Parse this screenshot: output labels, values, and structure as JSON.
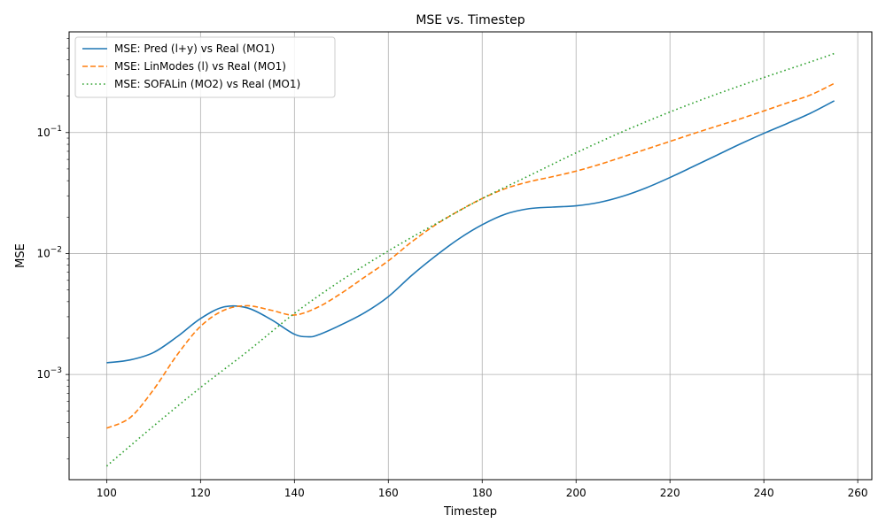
{
  "chart_data": {
    "type": "line",
    "title": "MSE vs. Timestep",
    "xlabel": "Timestep",
    "ylabel": "MSE",
    "xlim": [
      92,
      263
    ],
    "ylim": [
      0.000135,
      0.68
    ],
    "yscale": "log",
    "grid": true,
    "legend_position": "top-left",
    "x_ticks": [
      100,
      120,
      140,
      160,
      180,
      200,
      220,
      240,
      260
    ],
    "y_ticks": [
      {
        "value": 0.001,
        "base": "10",
        "exp": "−3"
      },
      {
        "value": 0.01,
        "base": "10",
        "exp": "−2"
      },
      {
        "value": 0.1,
        "base": "10",
        "exp": "−1"
      }
    ],
    "series": [
      {
        "name": "MSE: Pred (l+y) vs Real (MO1)",
        "color": "#1f77b4",
        "style": "solid",
        "x": [
          100,
          105,
          110,
          115,
          120,
          125,
          130,
          135,
          140,
          143,
          145,
          150,
          155,
          160,
          165,
          170,
          175,
          180,
          185,
          190,
          195,
          200,
          205,
          210,
          215,
          220,
          225,
          230,
          235,
          240,
          245,
          250,
          255
        ],
        "y": [
          0.00125,
          0.00132,
          0.00152,
          0.00205,
          0.0029,
          0.00362,
          0.00355,
          0.00285,
          0.00215,
          0.00205,
          0.00212,
          0.00258,
          0.00325,
          0.0044,
          0.0066,
          0.0095,
          0.0132,
          0.0173,
          0.0212,
          0.0235,
          0.0242,
          0.0248,
          0.0265,
          0.0298,
          0.035,
          0.0425,
          0.0525,
          0.065,
          0.0805,
          0.0985,
          0.119,
          0.145,
          0.183
        ]
      },
      {
        "name": "MSE: LinModes (l) vs Real (MO1)",
        "color": "#ff7f0e",
        "style": "dashed",
        "x": [
          100,
          105,
          110,
          115,
          120,
          125,
          130,
          135,
          140,
          145,
          150,
          155,
          160,
          165,
          170,
          175,
          180,
          185,
          190,
          195,
          200,
          205,
          210,
          215,
          220,
          225,
          230,
          235,
          240,
          245,
          250,
          255
        ],
        "y": [
          0.00036,
          0.00044,
          0.00075,
          0.00145,
          0.0025,
          0.0034,
          0.0037,
          0.0034,
          0.0031,
          0.0036,
          0.0047,
          0.0064,
          0.0087,
          0.0125,
          0.0172,
          0.0225,
          0.0285,
          0.0345,
          0.0392,
          0.0432,
          0.048,
          0.0545,
          0.063,
          0.073,
          0.0845,
          0.098,
          0.113,
          0.13,
          0.151,
          0.176,
          0.205,
          0.255
        ]
      },
      {
        "name": "MSE: SOFALin (MO2) vs Real (MO1)",
        "color": "#2ca02c",
        "style": "dotted",
        "x": [
          100,
          110,
          120,
          130,
          140,
          150,
          160,
          170,
          180,
          190,
          200,
          210,
          220,
          230,
          240,
          250,
          255
        ],
        "y": [
          0.000175,
          0.000375,
          0.00078,
          0.00155,
          0.0032,
          0.006,
          0.0105,
          0.0175,
          0.0285,
          0.044,
          0.068,
          0.102,
          0.148,
          0.208,
          0.285,
          0.385,
          0.45
        ]
      }
    ]
  }
}
